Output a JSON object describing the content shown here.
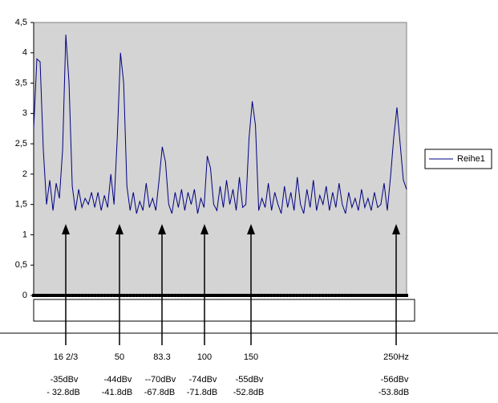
{
  "chart_data": {
    "type": "line",
    "series": [
      {
        "name": "Reihe1",
        "color": "#000080",
        "values": [
          2.75,
          3.9,
          3.85,
          2.4,
          1.5,
          1.9,
          1.4,
          1.85,
          1.6,
          2.4,
          4.3,
          3.5,
          1.8,
          1.4,
          1.75,
          1.45,
          1.6,
          1.5,
          1.7,
          1.45,
          1.7,
          1.4,
          1.65,
          1.45,
          2.0,
          1.5,
          2.6,
          4.0,
          3.5,
          1.8,
          1.4,
          1.7,
          1.35,
          1.55,
          1.4,
          1.85,
          1.45,
          1.6,
          1.4,
          1.9,
          2.45,
          2.2,
          1.5,
          1.35,
          1.7,
          1.45,
          1.75,
          1.4,
          1.7,
          1.5,
          1.75,
          1.35,
          1.6,
          1.45,
          2.3,
          2.1,
          1.5,
          1.4,
          1.8,
          1.45,
          1.9,
          1.5,
          1.75,
          1.4,
          1.95,
          1.45,
          1.5,
          2.6,
          3.2,
          2.8,
          1.4,
          1.6,
          1.45,
          1.85,
          1.4,
          1.7,
          1.5,
          1.35,
          1.8,
          1.45,
          1.7,
          1.4,
          1.95,
          1.5,
          1.35,
          1.75,
          1.45,
          1.9,
          1.4,
          1.65,
          1.5,
          1.8,
          1.4,
          1.7,
          1.45,
          1.85,
          1.5,
          1.35,
          1.7,
          1.45,
          1.6,
          1.4,
          1.75,
          1.45,
          1.6,
          1.4,
          1.7,
          1.45,
          1.5,
          1.85,
          1.4,
          1.95,
          2.6,
          3.1,
          2.5,
          1.9,
          1.75
        ]
      }
    ],
    "ylim": [
      0,
      4.5
    ],
    "yticks": [
      {
        "value": 0,
        "label": "0"
      },
      {
        "value": 0.5,
        "label": "0,5"
      },
      {
        "value": 1,
        "label": "1"
      },
      {
        "value": 1.5,
        "label": "1,5"
      },
      {
        "value": 2,
        "label": "2"
      },
      {
        "value": 2.5,
        "label": "2,5"
      },
      {
        "value": 3,
        "label": "3"
      },
      {
        "value": 3.5,
        "label": "3,5"
      },
      {
        "value": 4,
        "label": "4"
      },
      {
        "value": 4.5,
        "label": "4,5"
      }
    ],
    "annotations": [
      {
        "label": "16 2/3",
        "line1": "-35dBv",
        "line2": "- 32.8dB"
      },
      {
        "label": "50",
        "line1": "-44dBv",
        "line2": "-41.8dB"
      },
      {
        "label": "83.3",
        "line1": "--70dBv",
        "line2": "-67.8dB"
      },
      {
        "label": "100",
        "line1": "-74dBv",
        "line2": "-71.8dB"
      },
      {
        "label": "150",
        "line1": "-55dBv",
        "line2": "-52.8dB"
      },
      {
        "label": "250Hz",
        "line1": "-56dBv",
        "line2": "-53.8dB"
      }
    ]
  }
}
